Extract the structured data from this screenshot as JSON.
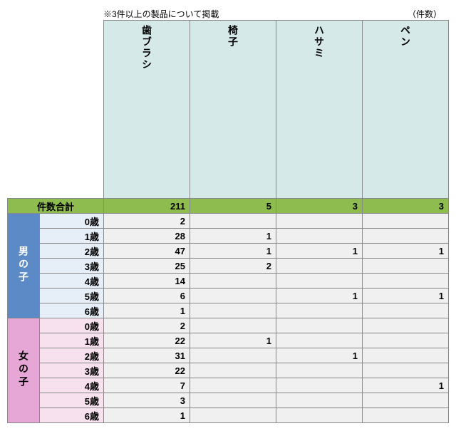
{
  "note": "※3件以上の製品について掲載",
  "unit_label": "（件数）",
  "total_label": "件数合計",
  "columns": [
    {
      "label": "歯ブラシ"
    },
    {
      "label": "椅子"
    },
    {
      "label": "ハサミ"
    },
    {
      "label": "ペン"
    }
  ],
  "totals": [
    "211",
    "5",
    "3",
    "3"
  ],
  "groups": [
    {
      "label": "男の子",
      "class": "boy",
      "rows": [
        {
          "age": "0歳",
          "vals": [
            "2",
            "",
            "",
            ""
          ]
        },
        {
          "age": "1歳",
          "vals": [
            "28",
            "1",
            "",
            ""
          ]
        },
        {
          "age": "2歳",
          "vals": [
            "47",
            "1",
            "1",
            "1"
          ]
        },
        {
          "age": "3歳",
          "vals": [
            "25",
            "2",
            "",
            ""
          ]
        },
        {
          "age": "4歳",
          "vals": [
            "14",
            "",
            "",
            ""
          ]
        },
        {
          "age": "5歳",
          "vals": [
            "6",
            "",
            "1",
            "1"
          ]
        },
        {
          "age": "6歳",
          "vals": [
            "1",
            "",
            "",
            ""
          ]
        }
      ]
    },
    {
      "label": "女の子",
      "class": "girl",
      "rows": [
        {
          "age": "0歳",
          "vals": [
            "2",
            "",
            "",
            ""
          ]
        },
        {
          "age": "1歳",
          "vals": [
            "22",
            "1",
            "",
            ""
          ]
        },
        {
          "age": "2歳",
          "vals": [
            "31",
            "",
            "1",
            ""
          ]
        },
        {
          "age": "3歳",
          "vals": [
            "22",
            "",
            "",
            ""
          ]
        },
        {
          "age": "4歳",
          "vals": [
            "7",
            "",
            "",
            "1"
          ]
        },
        {
          "age": "5歳",
          "vals": [
            "3",
            "",
            "",
            ""
          ]
        },
        {
          "age": "6歳",
          "vals": [
            "1",
            "",
            "",
            ""
          ]
        }
      ]
    }
  ],
  "colors": {
    "header_bg": "#d6e9e9",
    "total_bg": "#8fbc4f",
    "boy_group_bg": "#5b8ac6",
    "girl_group_bg": "#e6a6d6",
    "boy_age_bg": "#e6eef8",
    "girl_age_bg": "#f7e1ee",
    "cell_bg": "#f0f0f0",
    "border": "#888888"
  }
}
